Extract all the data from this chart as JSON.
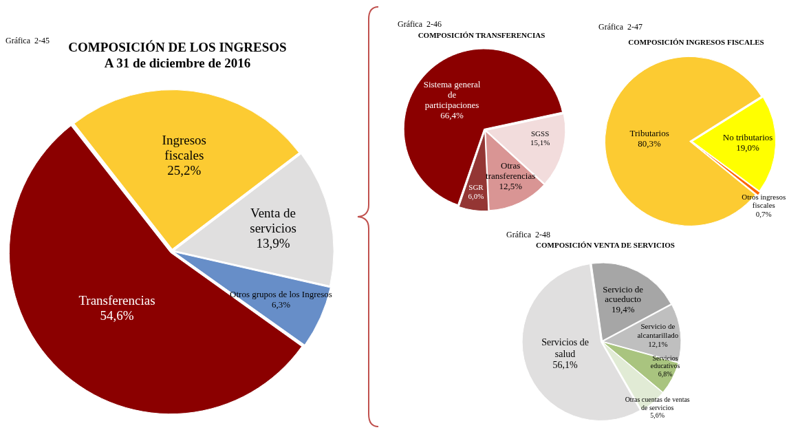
{
  "chart_data": [
    {
      "type": "pie",
      "title": "COMPOSICIÓN DE LOS INGRESOS",
      "subtitle": "A 31 de diciembre de 2016",
      "annotations": [
        "Gráfica  2-45"
      ],
      "categories": [
        "Ingresos fiscales",
        "Venta de servicios",
        "Otros grupos de los Ingresos",
        "Transferencias"
      ],
      "values": [
        25.2,
        13.9,
        6.3,
        54.6
      ],
      "value_labels": [
        "25,2%",
        "13,9%",
        "6,3%",
        "54,6%"
      ],
      "colors": [
        "#fccb32",
        "#e0dfdf",
        "#678ec8",
        "#8b0000"
      ],
      "legend": false
    },
    {
      "type": "pie",
      "title": "COMPOSICIÓN TRANSFERENCIAS",
      "annotations": [
        "Gráfica  2-46"
      ],
      "categories": [
        "SGSS",
        "Otras transferencias",
        "SGR",
        "Sistema general de participaciones"
      ],
      "values": [
        15.1,
        12.5,
        6.0,
        66.4
      ],
      "value_labels": [
        "15,1%",
        "12,5%",
        "6,0%",
        "66,4%"
      ],
      "colors": [
        "#f2dcdc",
        "#d99594",
        "#943634",
        "#8b0000"
      ],
      "legend": false
    },
    {
      "type": "pie",
      "title": "COMPOSICIÓN INGRESOS FISCALES",
      "annotations": [
        "Gráfica  2-47"
      ],
      "categories": [
        "No tributarios",
        "Otros ingresos fiscales",
        "Tributarios"
      ],
      "values": [
        19.0,
        0.7,
        80.3
      ],
      "value_labels": [
        "19,0%",
        "0,7%",
        "80,3%"
      ],
      "colors": [
        "#ffff00",
        "#ff6600",
        "#fccb32"
      ],
      "legend": false
    },
    {
      "type": "pie",
      "title": "COMPOSICIÓN VENTA DE SERVICIOS",
      "annotations": [
        "Gráfica  2-48"
      ],
      "categories": [
        "Servicio de acueducto",
        "Servicio de alcantarillado",
        "Servicios educativos",
        "Otras cuentas de ventas de servicios",
        "Servicios de salud"
      ],
      "values": [
        19.4,
        12.1,
        6.8,
        5.6,
        56.1
      ],
      "value_labels": [
        "19,4%",
        "12,1%",
        "6,8%",
        "5,6%",
        "56,1%"
      ],
      "colors": [
        "#a6a6a6",
        "#bfbfbf",
        "#a9c47f",
        "#e1ebd5",
        "#e0dfdf"
      ],
      "legend": false
    }
  ]
}
